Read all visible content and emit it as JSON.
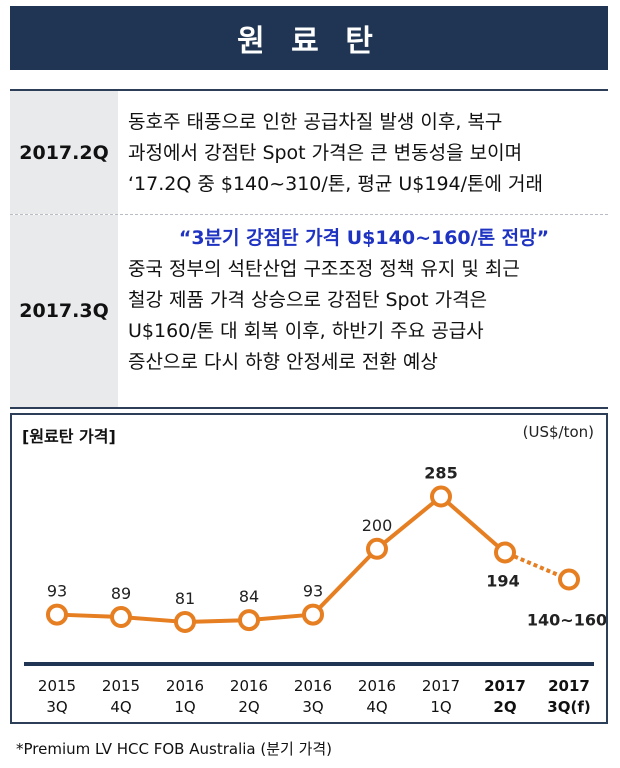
{
  "header": {
    "title": "원 료 탄"
  },
  "rows": [
    {
      "period": "2017.2Q",
      "lines": [
        "동호주 태풍으로 인한 공급차질  발생  이후, 복구",
        "과정에서 강점탄 Spot 가격은  큰 변동성을 보이며",
        "‘17.2Q 중 $140~310/톤, 평균 U$194/톤에 거래"
      ]
    },
    {
      "period": "2017.3Q",
      "highlight": "“3분기 강점탄 가격 U$140~160/톤 전망”",
      "lines": [
        "중국 정부의 석탄산업 구조조정 정책 유지 및 최근",
        "철강 제품 가격 상승으로 강점탄 Spot 가격은",
        "U$160/톤 대 회복 이후, 하반기 주요  공급사",
        "증산으로 다시 하향 안정세로 전환 예상"
      ]
    }
  ],
  "footnote": "*Premium LV HCC FOB Australia (분기 가격)",
  "colors": {
    "header_bg": "#1f3553",
    "line": "#e67e22",
    "axis": "#1f3553",
    "highlight": "#1f33c2"
  },
  "chart_data": {
    "type": "line",
    "title": "[원료탄 가격]",
    "unit": "(US$/ton)",
    "categories": [
      [
        "2015",
        "3Q"
      ],
      [
        "2015",
        "4Q"
      ],
      [
        "2016",
        "1Q"
      ],
      [
        "2016",
        "2Q"
      ],
      [
        "2016",
        "3Q"
      ],
      [
        "2016",
        "4Q"
      ],
      [
        "2017",
        "1Q"
      ],
      [
        "2017",
        "2Q"
      ],
      [
        "2017",
        "3Q(f)"
      ]
    ],
    "bold_categories": [
      7,
      8
    ],
    "values": [
      93,
      89,
      81,
      84,
      93,
      200,
      285,
      194,
      150
    ],
    "labels": [
      "93",
      "89",
      "81",
      "84",
      "93",
      "200",
      "285",
      "194",
      "140~160"
    ],
    "bold_labels": [
      6,
      7,
      8
    ],
    "forecast_from_index": 7,
    "ylim": [
      50,
      320
    ],
    "grid": false
  }
}
